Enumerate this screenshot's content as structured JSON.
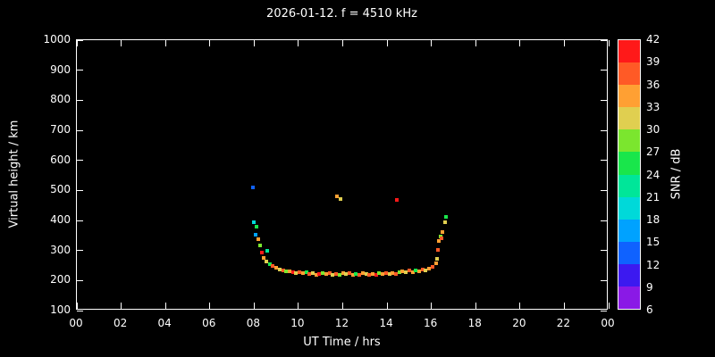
{
  "title": "2026-01-12. f = 4510 kHz",
  "axes": {
    "x_label": "UT Time / hrs",
    "y_label": "Virtual height / km",
    "cb_label": "SNR / dB"
  },
  "colors": {
    "background": "#000000",
    "foreground": "#ffffff"
  },
  "chart_data": {
    "type": "scatter",
    "title": "2026-01-12. f = 4510 kHz",
    "xlabel": "UT Time / hrs",
    "ylabel": "Virtual height / km",
    "xlim": [
      0,
      24
    ],
    "ylim": [
      100,
      1000
    ],
    "grid": false,
    "x_tick_values": [
      0,
      2,
      4,
      6,
      8,
      10,
      12,
      14,
      16,
      18,
      20,
      22,
      24
    ],
    "x_tick_labels": [
      "00",
      "02",
      "04",
      "06",
      "08",
      "10",
      "12",
      "14",
      "16",
      "18",
      "20",
      "22",
      "00"
    ],
    "y_tick_values": [
      100,
      200,
      300,
      400,
      500,
      600,
      700,
      800,
      900,
      1000
    ],
    "y_tick_labels": [
      "100",
      "200",
      "300",
      "400",
      "500",
      "600",
      "700",
      "800",
      "900",
      "1000"
    ],
    "colorbar": {
      "label": "SNR / dB",
      "min": 6,
      "max": 42,
      "tick_values": [
        6,
        9,
        12,
        15,
        18,
        21,
        24,
        27,
        30,
        33,
        36,
        39,
        42
      ],
      "segment_colors": [
        "#8a19e6",
        "#3c19f0",
        "#0f62ff",
        "#00a2ff",
        "#00d9d9",
        "#00e699",
        "#19e64b",
        "#7be62e",
        "#e0cf50",
        "#ffa033",
        "#ff5a26",
        "#ff1919"
      ]
    },
    "points_format": [
      "ut_hr",
      "virtual_height_km",
      "snr_db"
    ],
    "points": [
      [
        7.95,
        510,
        12
      ],
      [
        8.0,
        395,
        18
      ],
      [
        8.1,
        378,
        24
      ],
      [
        8.05,
        352,
        15
      ],
      [
        8.2,
        338,
        33
      ],
      [
        8.25,
        318,
        27
      ],
      [
        8.35,
        292,
        39
      ],
      [
        8.45,
        276,
        33
      ],
      [
        8.6,
        300,
        21
      ],
      [
        8.55,
        262,
        30
      ],
      [
        8.7,
        255,
        24
      ],
      [
        8.85,
        248,
        36
      ],
      [
        9.0,
        242,
        33
      ],
      [
        9.15,
        238,
        30
      ],
      [
        9.3,
        234,
        36
      ],
      [
        9.45,
        230,
        27
      ],
      [
        9.6,
        232,
        33
      ],
      [
        9.75,
        228,
        39
      ],
      [
        9.9,
        226,
        30
      ],
      [
        10.05,
        229,
        36
      ],
      [
        10.2,
        224,
        33
      ],
      [
        10.35,
        227,
        24
      ],
      [
        10.5,
        222,
        36
      ],
      [
        10.65,
        225,
        30
      ],
      [
        10.8,
        220,
        33
      ],
      [
        10.95,
        223,
        39
      ],
      [
        11.1,
        226,
        27
      ],
      [
        11.25,
        221,
        33
      ],
      [
        11.4,
        224,
        36
      ],
      [
        11.55,
        220,
        30
      ],
      [
        11.7,
        222,
        36
      ],
      [
        11.72,
        480,
        33
      ],
      [
        11.88,
        470,
        30
      ],
      [
        11.85,
        220,
        27
      ],
      [
        12.0,
        224,
        33
      ],
      [
        12.15,
        221,
        30
      ],
      [
        12.3,
        225,
        36
      ],
      [
        12.45,
        219,
        33
      ],
      [
        12.6,
        223,
        24
      ],
      [
        12.75,
        220,
        36
      ],
      [
        12.9,
        224,
        33
      ],
      [
        13.05,
        221,
        30
      ],
      [
        13.2,
        218,
        36
      ],
      [
        13.35,
        222,
        33
      ],
      [
        13.5,
        220,
        39
      ],
      [
        13.65,
        224,
        27
      ],
      [
        13.8,
        221,
        33
      ],
      [
        13.95,
        225,
        36
      ],
      [
        14.1,
        222,
        30
      ],
      [
        14.25,
        226,
        33
      ],
      [
        14.4,
        223,
        36
      ],
      [
        14.45,
        468,
        42
      ],
      [
        14.55,
        227,
        27
      ],
      [
        14.7,
        231,
        33
      ],
      [
        14.85,
        228,
        30
      ],
      [
        15.0,
        233,
        36
      ],
      [
        15.15,
        229,
        33
      ],
      [
        15.3,
        235,
        24
      ],
      [
        15.45,
        231,
        33
      ],
      [
        15.6,
        237,
        36
      ],
      [
        15.75,
        234,
        30
      ],
      [
        15.9,
        241,
        33
      ],
      [
        16.05,
        246,
        36
      ],
      [
        16.2,
        256,
        33
      ],
      [
        16.25,
        271,
        30
      ],
      [
        16.3,
        302,
        36
      ],
      [
        16.35,
        332,
        33
      ],
      [
        16.4,
        348,
        27
      ],
      [
        16.45,
        340,
        36
      ],
      [
        16.5,
        362,
        33
      ],
      [
        16.6,
        395,
        30
      ],
      [
        16.65,
        412,
        24
      ]
    ]
  }
}
